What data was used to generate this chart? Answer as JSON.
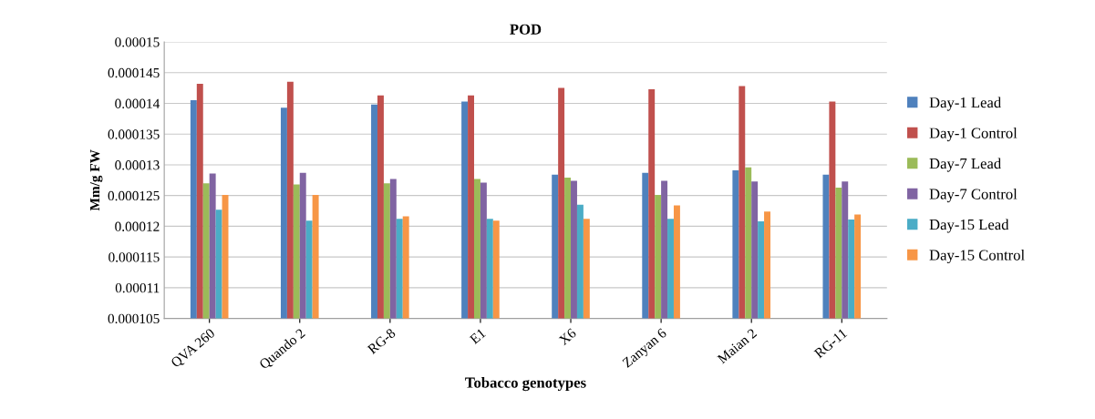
{
  "chart_data": {
    "type": "bar",
    "title": "POD",
    "xlabel": "Tobacco genotypes",
    "ylabel": "Mm/g FW",
    "categories": [
      "QVA 260",
      "Quando 2",
      "RG-8",
      "E1",
      "X6",
      "Zanyan 6",
      "Maian 2",
      "RG-11"
    ],
    "series": [
      {
        "name": "Day-1 Lead",
        "color": "#4f81bd",
        "values": [
          0.0001405,
          0.0001393,
          0.0001398,
          0.0001403,
          0.0001284,
          0.0001287,
          0.0001291,
          0.0001284
        ]
      },
      {
        "name": "Day-1 Control",
        "color": "#c0504d",
        "values": [
          0.0001432,
          0.0001435,
          0.0001413,
          0.0001413,
          0.0001425,
          0.0001423,
          0.0001428,
          0.0001403
        ]
      },
      {
        "name": "Day-7 Lead",
        "color": "#9bbb59",
        "values": [
          0.000127,
          0.0001268,
          0.000127,
          0.0001277,
          0.0001279,
          0.0001251,
          0.0001296,
          0.0001263
        ]
      },
      {
        "name": "Day-7 Control",
        "color": "#8064a2",
        "values": [
          0.0001286,
          0.0001287,
          0.0001277,
          0.0001271,
          0.0001274,
          0.0001274,
          0.0001273,
          0.0001273
        ]
      },
      {
        "name": "Day-15 Lead",
        "color": "#4bacc6",
        "values": [
          0.0001227,
          0.0001209,
          0.0001212,
          0.0001212,
          0.0001235,
          0.0001212,
          0.0001208,
          0.0001211
        ]
      },
      {
        "name": "Day-15 Control",
        "color": "#f79646",
        "values": [
          0.0001251,
          0.0001251,
          0.0001216,
          0.0001209,
          0.0001212,
          0.0001234,
          0.0001224,
          0.0001219
        ]
      }
    ],
    "ylim": [
      0.000105,
      0.00015
    ],
    "yticks": [
      {
        "value": 0.000105,
        "label": "0.000105"
      },
      {
        "value": 0.00011,
        "label": "0.00011"
      },
      {
        "value": 0.000115,
        "label": "0.000115"
      },
      {
        "value": 0.00012,
        "label": "0.00012"
      },
      {
        "value": 0.000125,
        "label": "0.000125"
      },
      {
        "value": 0.00013,
        "label": "0.00013"
      },
      {
        "value": 0.000135,
        "label": "0.000135"
      },
      {
        "value": 0.00014,
        "label": "0.00014"
      },
      {
        "value": 0.000145,
        "label": "0.000145"
      },
      {
        "value": 0.00015,
        "label": "0.00015"
      }
    ],
    "grid": "y",
    "legend": "right"
  }
}
